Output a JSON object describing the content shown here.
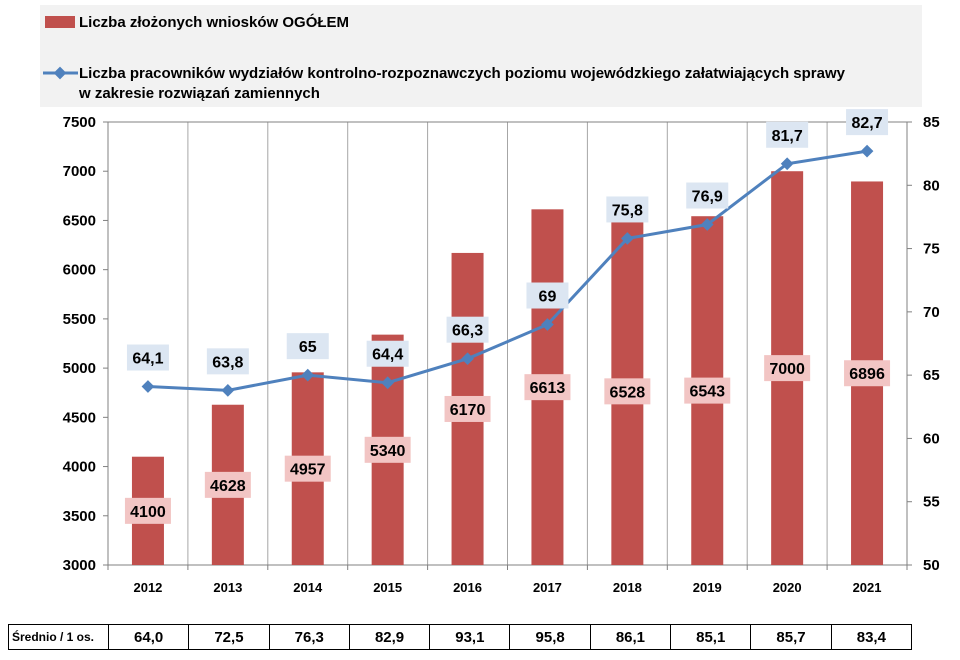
{
  "legend": {
    "bar_label": "Liczba złożonych wniosków OGÓŁEM",
    "line_label_1": "Liczba pracowników wydziałów kontrolno-rozpoznawczych poziomu wojewódzkiego załatwiających sprawy",
    "line_label_2": "w zakresie rozwiązań zamiennych"
  },
  "colors": {
    "bar": "#c0504d",
    "line": "#4f81bd",
    "bar_label_bg": "#f2c5c4",
    "line_label_bg": "#dce6f2"
  },
  "chart_data": {
    "type": "bar",
    "categories": [
      "2012",
      "2013",
      "2014",
      "2015",
      "2016",
      "2017",
      "2018",
      "2019",
      "2020",
      "2021"
    ],
    "series": [
      {
        "name": "Liczba złożonych wniosków OGÓŁEM",
        "type": "bar",
        "axis": "left",
        "values": [
          4100,
          4628,
          4957,
          5340,
          6170,
          6613,
          6528,
          6543,
          7000,
          6896
        ]
      },
      {
        "name": "Liczba pracowników wydziałów kontrolno-rozpoznawczych poziomu wojewódzkiego załatwiających sprawy w zakresie rozwiązań zamiennych",
        "type": "line",
        "axis": "right",
        "values": [
          64.1,
          63.8,
          65,
          64.4,
          66.3,
          69,
          75.8,
          76.9,
          81.7,
          82.7
        ],
        "labels": [
          "64,1",
          "63,8",
          "65",
          "64,4",
          "66,3",
          "69",
          "75,8",
          "76,9",
          "81,7",
          "82,7"
        ]
      }
    ],
    "y_left": {
      "min": 3000,
      "max": 7500,
      "step": 500,
      "ticks": [
        "3000",
        "3500",
        "4000",
        "4500",
        "5000",
        "5500",
        "6000",
        "6500",
        "7000",
        "7500"
      ]
    },
    "y_right": {
      "min": 50,
      "max": 85,
      "step": 5,
      "ticks": [
        "50",
        "55",
        "60",
        "65",
        "70",
        "75",
        "80",
        "85"
      ]
    },
    "grid": "vertical",
    "legend_position": "top"
  },
  "table": {
    "label": "Średnio / 1 os.",
    "values": [
      "64,0",
      "72,5",
      "76,3",
      "82,9",
      "93,1",
      "95,8",
      "86,1",
      "85,1",
      "85,7",
      "83,4"
    ]
  }
}
